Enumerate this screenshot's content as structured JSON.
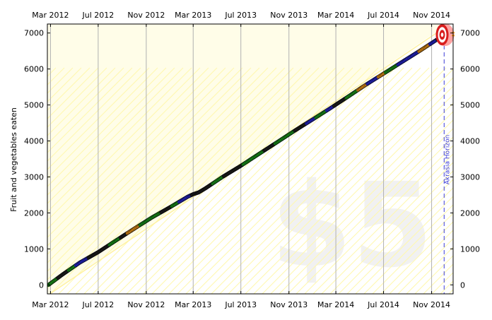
{
  "chart_data": {
    "type": "scatter",
    "ylabel": "Fruit and vegetables eaten",
    "x_ticks": [
      "Mar 2012",
      "Jul 2012",
      "Nov 2012",
      "Mar 2013",
      "Jul 2013",
      "Nov 2013",
      "Mar 2014",
      "Jul 2014",
      "Nov 2014"
    ],
    "y_ticks": [
      0,
      1000,
      2000,
      3000,
      4000,
      5000,
      6000,
      7000
    ],
    "xlim": [
      "2012-02-22",
      "2014-12-26"
    ],
    "ylim": [
      -250,
      7250
    ],
    "grid": "vertical",
    "series": [
      {
        "x": [
          "2012-02-25",
          "2012-04-01",
          "2012-05-15",
          "2012-07-01",
          "2012-08-15",
          "2012-10-01",
          "2012-11-15",
          "2013-01-01",
          "2013-02-15",
          "2013-03-01",
          "2013-03-15",
          "2013-04-01",
          "2013-05-15",
          "2013-07-01",
          "2013-08-15",
          "2013-10-01",
          "2013-11-15",
          "2014-01-01",
          "2014-02-15",
          "2014-04-01",
          "2014-05-15",
          "2014-07-01",
          "2014-08-15",
          "2014-10-01",
          "2014-11-15",
          "2014-11-21"
        ],
        "y": [
          0,
          290,
          620,
          910,
          1230,
          1560,
          1870,
          2160,
          2450,
          2520,
          2570,
          2680,
          3000,
          3310,
          3630,
          3960,
          4280,
          4600,
          4910,
          5230,
          5550,
          5870,
          6180,
          6500,
          6820,
          6850
        ]
      }
    ],
    "goal_point": {
      "x": "2014-11-28",
      "y": 6950
    },
    "horizon_x": "2014-12-03",
    "colors": {
      "dots": [
        "#2a2adb",
        "#1d9e1d",
        "#f59a19",
        "#222222"
      ],
      "road": "#fff8b0",
      "horizon": "#3b3bd6",
      "target": "#d81e1e"
    }
  },
  "annotations": {
    "horizon_label": "Akrasia Horizon",
    "pledge": "$5"
  },
  "icons": {
    "target": "bullseye-icon",
    "watermark": "smiley-face-icon"
  }
}
